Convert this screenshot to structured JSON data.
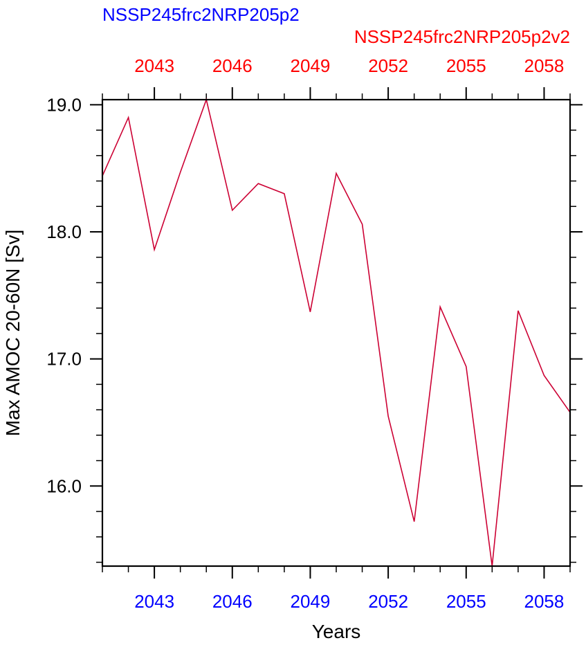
{
  "chart_data": {
    "type": "line",
    "title_left": "NSSP245frc2NRP205p2",
    "title_right": "NSSP245frc2NRP205p2v2",
    "xlabel": "Years",
    "ylabel": "Max AMOC 20-60N [Sv]",
    "xlim": [
      2041,
      2059
    ],
    "ylim": [
      15.37,
      19.04
    ],
    "x_major_ticks": [
      2043,
      2046,
      2049,
      2052,
      2055,
      2058
    ],
    "y_major_ticks": [
      16.0,
      17.0,
      18.0,
      19.0
    ],
    "y_tick_labels": [
      "16.0",
      "17.0",
      "18.0",
      "19.0"
    ],
    "grid": false,
    "colors": {
      "left_title": "#0000ff",
      "bottom_ticks": "#0000ff",
      "right_title": "#ff0000",
      "top_ticks": "#ff0000",
      "line": "#cc0033",
      "axes": "#000000"
    },
    "series": [
      {
        "x": [
          2041,
          2042,
          2043,
          2044,
          2045,
          2046,
          2047,
          2048,
          2049,
          2050,
          2051,
          2052,
          2053,
          2054,
          2055,
          2056,
          2057,
          2058,
          2059
        ],
        "values": [
          18.44,
          18.9,
          17.86,
          18.47,
          19.04,
          18.17,
          18.38,
          18.3,
          17.37,
          18.46,
          18.06,
          16.55,
          15.72,
          17.41,
          16.94,
          15.37,
          17.38,
          16.87,
          16.58
        ]
      }
    ]
  }
}
